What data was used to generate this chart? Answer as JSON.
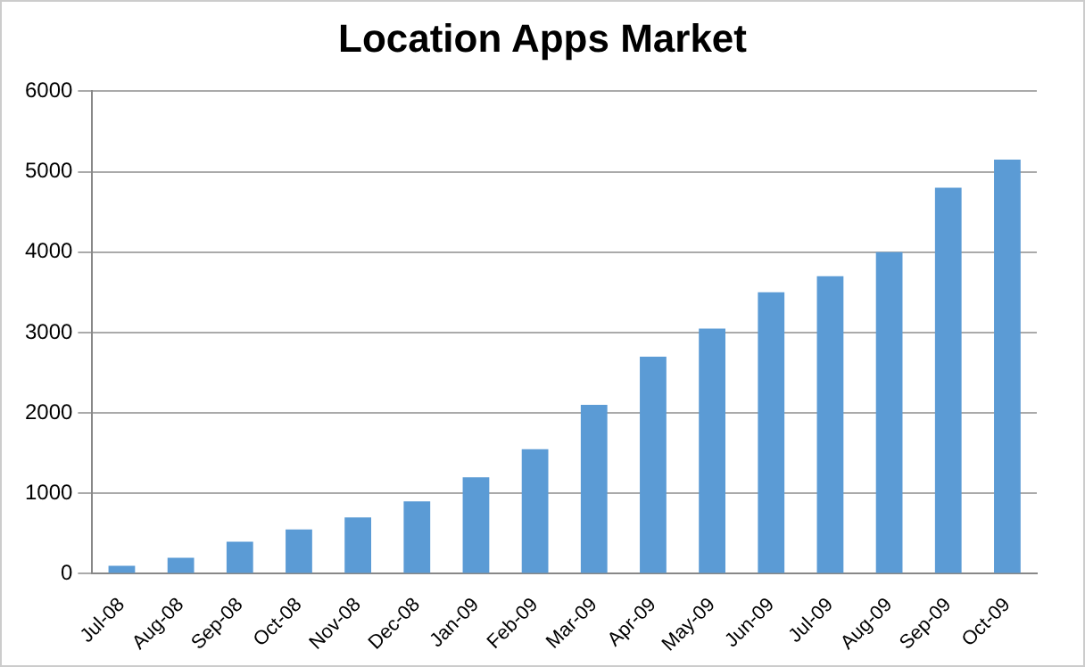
{
  "chart_data": {
    "type": "bar",
    "title": "Location Apps Market",
    "categories": [
      "Jul-08",
      "Aug-08",
      "Sep-08",
      "Oct-08",
      "Nov-08",
      "Dec-08",
      "Jan-09",
      "Feb-09",
      "Mar-09",
      "Apr-09",
      "May-09",
      "Jun-09",
      "Jul-09",
      "Aug-09",
      "Sep-09",
      "Oct-09"
    ],
    "values": [
      100,
      200,
      400,
      550,
      700,
      900,
      1200,
      1550,
      2100,
      2700,
      3050,
      3500,
      3700,
      4000,
      4800,
      5150
    ],
    "color": "#5b9bd5",
    "ylim": [
      0,
      6000
    ],
    "yticks": [
      0,
      1000,
      2000,
      3000,
      4000,
      5000,
      6000
    ],
    "grid": "y",
    "legend": false
  }
}
